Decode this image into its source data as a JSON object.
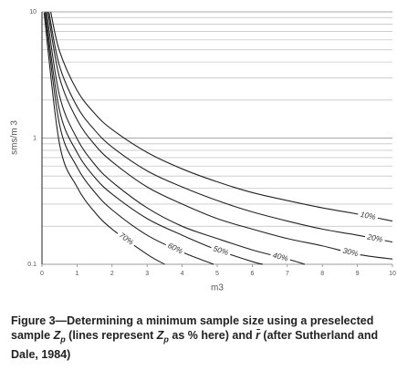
{
  "chart_data": {
    "type": "line",
    "xlabel": "m3",
    "ylabel": "sms/m 3",
    "xlim": [
      0,
      10
    ],
    "ylim": [
      0.1,
      10
    ],
    "yscale": "log",
    "xticks": [
      0,
      1,
      2,
      3,
      4,
      5,
      6,
      7,
      8,
      9,
      10
    ],
    "yticks": [
      0.1,
      1,
      10
    ],
    "yminorticks": [
      0.2,
      0.3,
      0.4,
      0.5,
      0.6,
      0.7,
      0.8,
      0.9,
      2,
      3,
      4,
      5,
      6,
      7,
      8,
      9
    ],
    "grid": true,
    "series": [
      {
        "name": "10%",
        "color": "#222222",
        "x": [
          0.25,
          0.5,
          1,
          1.5,
          2,
          3,
          4,
          5,
          6,
          7,
          8,
          9,
          10
        ],
        "values": [
          10,
          4.9,
          2.39,
          1.57,
          1.17,
          0.77,
          0.57,
          0.45,
          0.37,
          0.32,
          0.28,
          0.25,
          0.22
        ]
      },
      {
        "name": "20%",
        "color": "#222222",
        "x": [
          0.2,
          0.5,
          1,
          1.5,
          2,
          3,
          4,
          5,
          6,
          7,
          8,
          9,
          10
        ],
        "values": [
          9.9,
          3.73,
          1.78,
          1.16,
          0.85,
          0.55,
          0.41,
          0.32,
          0.26,
          0.22,
          0.19,
          0.17,
          0.15
        ]
      },
      {
        "name": "30%",
        "color": "#222222",
        "x": [
          0.17,
          0.5,
          1,
          1.5,
          2,
          3,
          4,
          5,
          6,
          7,
          8,
          9,
          10
        ],
        "values": [
          10,
          3.02,
          1.4,
          0.89,
          0.65,
          0.41,
          0.3,
          0.23,
          0.19,
          0.16,
          0.14,
          0.12,
          0.11
        ]
      },
      {
        "name": "40%",
        "color": "#222222",
        "x": [
          0.13,
          0.5,
          1,
          1.5,
          2,
          3,
          4,
          5,
          6,
          7,
          7.5
        ],
        "values": [
          10,
          2.17,
          0.99,
          0.62,
          0.45,
          0.28,
          0.2,
          0.16,
          0.13,
          0.11,
          0.1
        ]
      },
      {
        "name": "50%",
        "color": "#222222",
        "x": [
          0.1,
          0.5,
          1,
          1.5,
          2,
          3,
          4,
          5,
          6,
          6.3
        ],
        "values": [
          9.9,
          1.66,
          0.77,
          0.49,
          0.36,
          0.23,
          0.17,
          0.13,
          0.105,
          0.1
        ]
      },
      {
        "name": "60%",
        "color": "#222222",
        "x": [
          0.08,
          0.5,
          1,
          1.5,
          2,
          3,
          4,
          4.9
        ],
        "values": [
          10,
          1.28,
          0.59,
          0.374,
          0.27,
          0.17,
          0.125,
          0.1
        ]
      },
      {
        "name": "70%",
        "color": "#222222",
        "x": [
          0.06,
          0.5,
          1,
          1.5,
          2,
          3,
          3.5
        ],
        "values": [
          9.8,
          0.9,
          0.41,
          0.26,
          0.19,
          0.12,
          0.1
        ]
      }
    ]
  },
  "caption": [
    {
      "text": "Figure 3—Determining a minimum sample size using a preselected sample ",
      "style": "normal"
    },
    {
      "text": "Z",
      "style": "italic"
    },
    {
      "text": "p",
      "style": "sub"
    },
    {
      "text": " (lines represent ",
      "style": "normal"
    },
    {
      "text": "Z",
      "style": "italic"
    },
    {
      "text": "p",
      "style": "sub"
    },
    {
      "text": " as % here) and ",
      "style": "normal"
    },
    {
      "text": "r̄",
      "style": "italic"
    },
    {
      "text": " (after Sutherland and Dale, 1984)",
      "style": "normal"
    }
  ]
}
